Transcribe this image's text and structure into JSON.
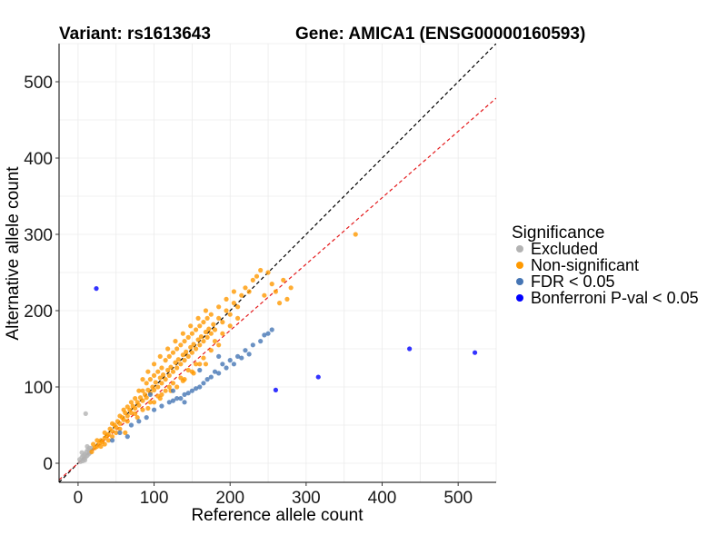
{
  "chart_data": {
    "type": "scatter",
    "title_left": "Variant: rs1613643",
    "title_right": "Gene: AMICA1 (ENSG00000160593)",
    "xlabel": "Reference allele count",
    "ylabel": "Alternative allele count",
    "xlim": [
      -25,
      550
    ],
    "ylim": [
      -25,
      550
    ],
    "xticks": [
      0,
      100,
      200,
      300,
      400,
      500
    ],
    "yticks": [
      0,
      100,
      200,
      300,
      400,
      500
    ],
    "xtick_labels": [
      "0",
      "100",
      "200",
      "300",
      "400",
      "500"
    ],
    "ytick_labels": [
      "0",
      "100",
      "200",
      "300",
      "400",
      "500"
    ],
    "grid": true,
    "legend_title": "Significance",
    "legend_position": "right",
    "reference_lines": [
      {
        "slope": 1.0,
        "intercept": 0,
        "color": "#000000",
        "style": "dashed"
      },
      {
        "slope": 0.87,
        "intercept": 0,
        "color": "#e41a1c",
        "style": "dashed"
      }
    ],
    "series": [
      {
        "name": "Excluded",
        "color": "#b3b3b3",
        "points": [
          [
            2,
            5
          ],
          [
            3,
            2
          ],
          [
            5,
            8
          ],
          [
            6,
            3
          ],
          [
            7,
            10
          ],
          [
            8,
            6
          ],
          [
            9,
            12
          ],
          [
            10,
            8
          ],
          [
            11,
            15
          ],
          [
            12,
            10
          ],
          [
            13,
            18
          ],
          [
            14,
            12
          ],
          [
            15,
            20
          ],
          [
            16,
            14
          ],
          [
            5,
            14
          ],
          [
            9,
            4
          ],
          [
            12,
            22
          ],
          [
            10,
            65
          ],
          [
            15,
            16
          ],
          [
            18,
            20
          ]
        ]
      },
      {
        "name": "Non-significant",
        "color": "#ff9900",
        "points": [
          [
            18,
            15
          ],
          [
            22,
            20
          ],
          [
            25,
            22
          ],
          [
            28,
            26
          ],
          [
            30,
            30
          ],
          [
            32,
            28
          ],
          [
            35,
            33
          ],
          [
            38,
            36
          ],
          [
            40,
            38
          ],
          [
            42,
            45
          ],
          [
            45,
            42
          ],
          [
            48,
            50
          ],
          [
            50,
            47
          ],
          [
            52,
            55
          ],
          [
            55,
            52
          ],
          [
            58,
            60
          ],
          [
            60,
            57
          ],
          [
            62,
            66
          ],
          [
            65,
            62
          ],
          [
            68,
            70
          ],
          [
            70,
            66
          ],
          [
            72,
            75
          ],
          [
            75,
            72
          ],
          [
            78,
            80
          ],
          [
            80,
            76
          ],
          [
            82,
            86
          ],
          [
            85,
            82
          ],
          [
            88,
            90
          ],
          [
            90,
            86
          ],
          [
            92,
            96
          ],
          [
            95,
            92
          ],
          [
            98,
            100
          ],
          [
            100,
            96
          ],
          [
            102,
            106
          ],
          [
            105,
            100
          ],
          [
            108,
            112
          ],
          [
            110,
            105
          ],
          [
            112,
            116
          ],
          [
            115,
            110
          ],
          [
            118,
            122
          ],
          [
            120,
            115
          ],
          [
            122,
            126
          ],
          [
            125,
            120
          ],
          [
            128,
            132
          ],
          [
            130,
            125
          ],
          [
            132,
            136
          ],
          [
            135,
            130
          ],
          [
            138,
            142
          ],
          [
            140,
            135
          ],
          [
            142,
            146
          ],
          [
            145,
            140
          ],
          [
            148,
            152
          ],
          [
            150,
            145
          ],
          [
            152,
            156
          ],
          [
            155,
            150
          ],
          [
            158,
            162
          ],
          [
            160,
            155
          ],
          [
            162,
            166
          ],
          [
            165,
            160
          ],
          [
            168,
            172
          ],
          [
            170,
            165
          ],
          [
            172,
            176
          ],
          [
            175,
            170
          ],
          [
            178,
            182
          ],
          [
            180,
            175
          ],
          [
            185,
            190
          ],
          [
            190,
            185
          ],
          [
            195,
            200
          ],
          [
            200,
            195
          ],
          [
            205,
            210
          ],
          [
            210,
            205
          ],
          [
            215,
            220
          ],
          [
            220,
            230
          ],
          [
            225,
            225
          ],
          [
            230,
            240
          ],
          [
            235,
            245
          ],
          [
            240,
            253
          ],
          [
            245,
            220
          ],
          [
            250,
            250
          ],
          [
            255,
            235
          ],
          [
            260,
            225
          ],
          [
            265,
            210
          ],
          [
            270,
            240
          ],
          [
            280,
            230
          ],
          [
            275,
            215
          ],
          [
            365,
            300
          ],
          [
            60,
            70
          ],
          [
            70,
            80
          ],
          [
            80,
            95
          ],
          [
            90,
            105
          ],
          [
            100,
            115
          ],
          [
            110,
            125
          ],
          [
            120,
            140
          ],
          [
            130,
            150
          ],
          [
            140,
            160
          ],
          [
            150,
            170
          ],
          [
            160,
            180
          ],
          [
            170,
            190
          ],
          [
            55,
            45
          ],
          [
            65,
            55
          ],
          [
            75,
            65
          ],
          [
            85,
            70
          ],
          [
            95,
            80
          ],
          [
            105,
            88
          ],
          [
            115,
            95
          ],
          [
            125,
            105
          ],
          [
            135,
            112
          ],
          [
            145,
            122
          ],
          [
            155,
            130
          ],
          [
            165,
            138
          ],
          [
            175,
            148
          ],
          [
            185,
            155
          ],
          [
            40,
            30
          ],
          [
            50,
            40
          ],
          [
            30,
            22
          ],
          [
            35,
            25
          ],
          [
            45,
            35
          ],
          [
            130,
            100
          ],
          [
            140,
            110
          ],
          [
            150,
            120
          ],
          [
            160,
            130
          ],
          [
            100,
            80
          ],
          [
            110,
            90
          ],
          [
            120,
            100
          ],
          [
            95,
            110
          ],
          [
            105,
            120
          ],
          [
            115,
            135
          ],
          [
            125,
            145
          ],
          [
            135,
            155
          ],
          [
            145,
            165
          ],
          [
            155,
            175
          ],
          [
            165,
            185
          ],
          [
            175,
            195
          ],
          [
            185,
            205
          ],
          [
            195,
            215
          ],
          [
            205,
            225
          ],
          [
            200,
            180
          ],
          [
            210,
            190
          ],
          [
            190,
            170
          ],
          [
            180,
            160
          ],
          [
            20,
            25
          ],
          [
            25,
            30
          ],
          [
            35,
            40
          ],
          [
            45,
            52
          ],
          [
            55,
            62
          ],
          [
            65,
            74
          ],
          [
            75,
            85
          ],
          [
            85,
            95
          ],
          [
            62,
            40
          ],
          [
            78,
            60
          ],
          [
            92,
            72
          ],
          [
            108,
            85
          ],
          [
            122,
            95
          ],
          [
            138,
            108
          ],
          [
            152,
            118
          ],
          [
            168,
            130
          ],
          [
            85,
            110
          ],
          [
            100,
            130
          ],
          [
            92,
            120
          ],
          [
            108,
            140
          ],
          [
            118,
            150
          ],
          [
            128,
            160
          ],
          [
            138,
            170
          ],
          [
            148,
            180
          ],
          [
            158,
            190
          ],
          [
            168,
            200
          ]
        ]
      },
      {
        "name": "FDR < 0.05",
        "color": "#4575b4",
        "points": [
          [
            65,
            35
          ],
          [
            90,
            60
          ],
          [
            110,
            75
          ],
          [
            120,
            80
          ],
          [
            130,
            85
          ],
          [
            140,
            90
          ],
          [
            150,
            95
          ],
          [
            160,
            100
          ],
          [
            170,
            110
          ],
          [
            180,
            120
          ],
          [
            190,
            130
          ],
          [
            200,
            135
          ],
          [
            210,
            140
          ],
          [
            220,
            148
          ],
          [
            230,
            155
          ],
          [
            240,
            160
          ],
          [
            245,
            168
          ],
          [
            250,
            170
          ],
          [
            255,
            175
          ],
          [
            140,
            80
          ],
          [
            135,
            85
          ],
          [
            145,
            92
          ],
          [
            155,
            98
          ],
          [
            165,
            105
          ],
          [
            175,
            113
          ],
          [
            185,
            118
          ],
          [
            195,
            125
          ],
          [
            205,
            130
          ],
          [
            215,
            138
          ],
          [
            225,
            143
          ],
          [
            45,
            30
          ],
          [
            55,
            40
          ],
          [
            125,
            95
          ],
          [
            70,
            50
          ],
          [
            100,
            70
          ],
          [
            80,
            55
          ],
          [
            95,
            90
          ],
          [
            185,
            140
          ],
          [
            160,
            122
          ],
          [
            125,
            82
          ]
        ]
      },
      {
        "name": "Bonferroni P-val < 0.05",
        "color": "#0000ff",
        "points": [
          [
            24,
            229
          ],
          [
            260,
            96
          ],
          [
            316,
            113
          ],
          [
            436,
            150
          ],
          [
            522,
            145
          ]
        ]
      }
    ]
  }
}
